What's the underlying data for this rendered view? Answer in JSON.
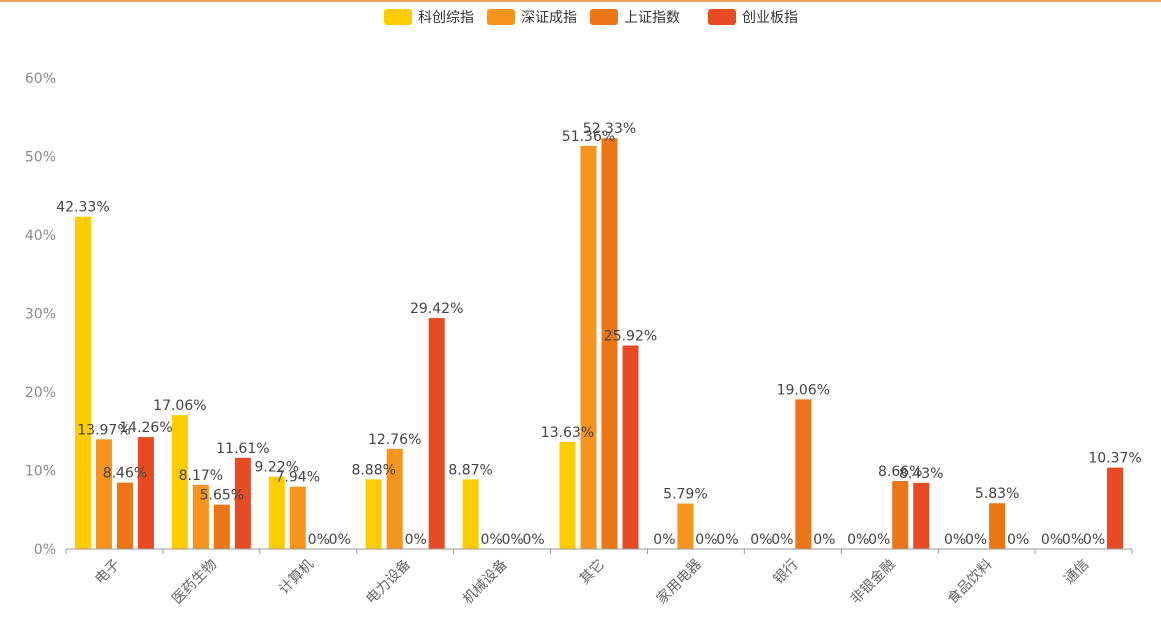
{
  "chart_data": {
    "type": "bar",
    "title": "",
    "xlabel": "",
    "ylabel": "",
    "ylim": [
      0,
      60
    ],
    "yticks": [
      "0%",
      "10%",
      "20%",
      "30%",
      "40%",
      "50%",
      "60%"
    ],
    "ytick_values": [
      0,
      10,
      20,
      30,
      40,
      50,
      60
    ],
    "grid": false,
    "legend_position": "top-center",
    "categories": [
      "电子",
      "医药生物",
      "计算机",
      "电力设备",
      "机械设备",
      "其它",
      "家用电器",
      "银行",
      "非银金融",
      "食品饮料",
      "通信"
    ],
    "series": [
      {
        "name": "科创综指",
        "color": "#ffcc00",
        "values": [
          42.33,
          17.06,
          9.22,
          8.88,
          8.87,
          13.63,
          0,
          0,
          0,
          0,
          0
        ],
        "labels": [
          "42.33%",
          "17.06%",
          "9.22%",
          "8.88%",
          "8.87%",
          "13.63%",
          "0%",
          "0%",
          "0%",
          "0%",
          "0%"
        ]
      },
      {
        "name": "深证成指",
        "color": "#f7941d",
        "values": [
          13.97,
          8.17,
          7.94,
          12.76,
          0,
          51.36,
          5.79,
          0,
          0,
          0,
          0
        ],
        "labels": [
          "13.97%",
          "8.17%",
          "7.94%",
          "12.76%",
          "0%",
          "51.36%",
          "5.79%",
          "0%",
          "0%",
          "0%",
          "0%"
        ]
      },
      {
        "name": "上证指数",
        "color": "#ec7615",
        "values": [
          8.46,
          5.65,
          0,
          0,
          0,
          52.33,
          0,
          19.06,
          8.66,
          5.83,
          0
        ],
        "labels": [
          "8.46%",
          "5.65%",
          "0%",
          "0%",
          "0%",
          "52.33%",
          "0%",
          "19.06%",
          "8.66%",
          "5.83%",
          "0%"
        ]
      },
      {
        "name": "创业板指",
        "color": "#e84b24",
        "values": [
          14.26,
          11.61,
          0,
          29.42,
          0,
          25.92,
          0,
          0,
          8.43,
          0,
          10.37
        ],
        "labels": [
          "14.26%",
          "11.61%",
          "0%",
          "29.42%",
          "0%",
          "25.92%",
          "0%",
          "0%",
          "8.43%",
          "0%",
          "10.37%"
        ]
      }
    ]
  }
}
